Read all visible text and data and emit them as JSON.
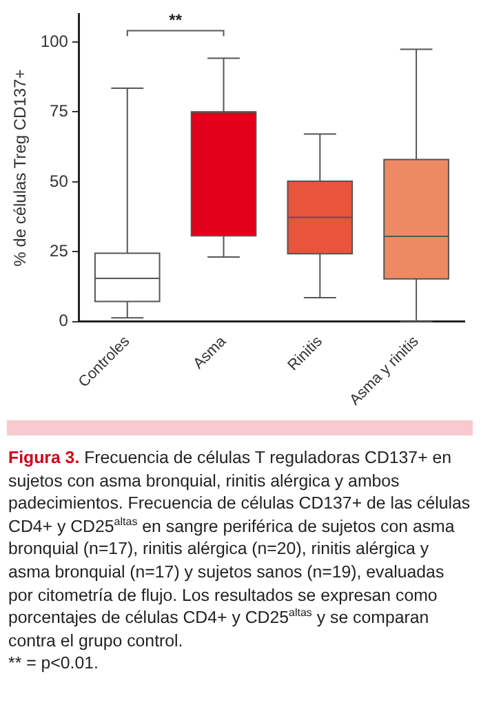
{
  "chart_data": {
    "type": "box",
    "ylabel": "% de células Treg CD137+",
    "categories": [
      "Controles",
      "Asma",
      "Rinitis",
      "Asma y rinitis"
    ],
    "boxes": [
      {
        "low": 1.4,
        "q1": 7.2,
        "median": 15.5,
        "q3": 24.5,
        "high": 83.5
      },
      {
        "low": 23.1,
        "q1": 30.7,
        "median": 75,
        "q3": 75,
        "high": 94.2
      },
      {
        "low": 8.6,
        "q1": 24.3,
        "median": 37.3,
        "q3": 50.2,
        "high": 67.1
      },
      {
        "low": 0,
        "q1": 15.3,
        "median": 30.5,
        "q3": 58,
        "high": 97.4
      }
    ],
    "colors": [
      "#ffffff",
      "#e2001a",
      "#e8553a",
      "#ee8a63"
    ],
    "ylim": [
      0,
      110
    ],
    "yticks": [
      0,
      25,
      50,
      75,
      100
    ],
    "grid": false,
    "legend": false,
    "annotations": [
      "**",
      "Figura 3.",
      "Frecuencia de células T reguladoras CD137+ en sujetos con asma bronquial, rinitis alérgica y ambos padecimientos. Frecuencia de células CD137+ de las células CD4+ y CD25$^{altas}$ en sangre periférica de sujetos con asma bronquial (n=17), rinitis alérgica (n=20), rinitis alérgica y asma bronquial (n=17) y sujetos sanos (n=19), evaluadas por citometría de flujo. Los resultados se expresan como porcentajes de células CD4+ y CD25$^{altas}$ y se comparan contra el grupo control.",
      "** = p<0.01."
    ]
  }
}
